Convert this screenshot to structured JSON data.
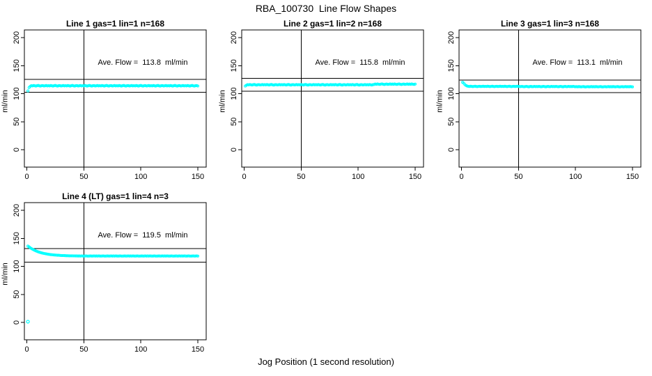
{
  "figure": {
    "title": "RBA_100730  Line Flow Shapes",
    "x_axis_label": "Jog Position (1 second resolution)"
  },
  "colors": {
    "points": "#00FFFF",
    "axes_and_lines": "#000000",
    "background": "#FFFFFF"
  },
  "chart_data": [
    {
      "type": "scatter",
      "title": "Line 1 gas=1 lin=1 n=168",
      "annotation": "Ave. Flow =  113.8  ml/min",
      "ave_flow": 113.8,
      "ylabel": "ml/min",
      "xlim": [
        0,
        150
      ],
      "ylim": [
        0,
        200
      ],
      "x_ticks": [
        0,
        50,
        100,
        150
      ],
      "y_ticks": [
        0,
        50,
        100,
        150,
        200
      ],
      "vline_x": 50,
      "hlines": [
        125.2,
        102.4
      ],
      "x_start": 1,
      "x_step": 1,
      "y_values": [
        104.9,
        110.8,
        113.0,
        114.3,
        113.8,
        114.5,
        114.0,
        113.6,
        114.2,
        114.6,
        113.9,
        113.5,
        114.1,
        114.4,
        113.7,
        114.0,
        114.5,
        113.8,
        114.3,
        113.8,
        114.5,
        114.0,
        113.6,
        114.2,
        114.6,
        113.9,
        113.5,
        114.1,
        114.4,
        113.7,
        114.0,
        114.5,
        113.8,
        114.3,
        113.8,
        114.5,
        114.0,
        113.6,
        114.2,
        114.6,
        113.9,
        113.5,
        114.1,
        114.4,
        113.7,
        114.0,
        114.5,
        113.8,
        114.3,
        113.8,
        114.5,
        114.0,
        113.6,
        114.2,
        114.6,
        113.9,
        113.5,
        114.1,
        114.4,
        113.7,
        114.0,
        114.5,
        113.8,
        114.3,
        113.8,
        114.5,
        114.0,
        113.6,
        114.2,
        114.6,
        113.9,
        113.5,
        114.1,
        114.4,
        113.7,
        114.0,
        114.5,
        113.8,
        114.3,
        113.8,
        114.5,
        114.0,
        113.6,
        114.2,
        114.6,
        113.9,
        113.5,
        114.1,
        114.4,
        113.7,
        114.0,
        114.5,
        113.8,
        114.3,
        113.8,
        114.5,
        114.0,
        113.6,
        114.2,
        114.6,
        113.9,
        113.5,
        114.1,
        114.4,
        113.7,
        114.0,
        114.5,
        113.8,
        114.3,
        113.8,
        114.5,
        114.0,
        113.6,
        114.2,
        114.6,
        113.9,
        113.5,
        114.1,
        114.4,
        113.7,
        114.0,
        114.5,
        113.8,
        114.3,
        113.8,
        114.5,
        114.0,
        113.6,
        114.2,
        114.6,
        113.9,
        113.5,
        114.1,
        114.4,
        113.7,
        114.0,
        114.5,
        113.8,
        114.3,
        113.8,
        114.5,
        114.0,
        113.6,
        114.2,
        114.6,
        113.9,
        113.5,
        114.1,
        114.4,
        113.7
      ],
      "extra_points": []
    },
    {
      "type": "scatter",
      "title": "Line 2 gas=1 lin=2 n=168",
      "annotation": "Ave. Flow =  115.8  ml/min",
      "ave_flow": 115.8,
      "ylabel": "ml/min",
      "xlim": [
        0,
        150
      ],
      "ylim": [
        0,
        200
      ],
      "x_ticks": [
        0,
        50,
        100,
        150
      ],
      "y_ticks": [
        0,
        50,
        100,
        150,
        200
      ],
      "vline_x": 50,
      "hlines": [
        127.4,
        104.2
      ],
      "x_start": 1,
      "x_step": 1,
      "y_values": [
        113.6,
        115.0,
        116.1,
        115.6,
        116.3,
        115.8,
        115.4,
        116.0,
        116.4,
        115.7,
        115.3,
        115.9,
        116.2,
        115.5,
        115.8,
        116.3,
        115.6,
        116.1,
        115.6,
        116.3,
        115.8,
        115.4,
        116.0,
        116.4,
        115.7,
        115.3,
        115.9,
        116.2,
        115.5,
        115.8,
        116.3,
        115.6,
        116.1,
        115.6,
        116.3,
        115.8,
        115.4,
        116.0,
        116.4,
        115.7,
        115.3,
        115.9,
        116.2,
        115.5,
        115.8,
        116.3,
        115.6,
        116.1,
        115.6,
        116.3,
        115.8,
        115.4,
        116.0,
        116.4,
        115.7,
        115.3,
        115.9,
        116.2,
        115.5,
        115.8,
        116.3,
        115.6,
        116.1,
        115.6,
        116.3,
        115.8,
        115.4,
        116.0,
        116.4,
        115.7,
        115.3,
        115.9,
        116.2,
        115.5,
        115.8,
        116.3,
        115.6,
        116.1,
        115.6,
        116.3,
        115.8,
        115.4,
        116.0,
        116.4,
        115.7,
        115.3,
        115.9,
        116.2,
        115.5,
        115.8,
        116.3,
        115.6,
        116.1,
        115.6,
        116.3,
        115.8,
        115.4,
        116.0,
        116.4,
        115.7,
        115.3,
        115.9,
        116.2,
        115.5,
        115.8,
        116.3,
        115.6,
        116.1,
        115.6,
        116.3,
        115.8,
        115.4,
        116.0,
        116.4,
        117.1,
        116.6,
        117.3,
        116.8,
        116.4,
        117.0,
        117.4,
        116.7,
        116.3,
        116.9,
        117.2,
        116.5,
        116.8,
        117.3,
        116.6,
        117.1,
        116.6,
        117.3,
        116.8,
        116.4,
        117.0,
        117.4,
        116.7,
        116.3,
        116.9,
        117.2,
        116.5,
        116.8,
        117.3,
        116.6,
        117.1,
        116.6,
        117.3,
        116.8,
        116.4,
        117.0
      ],
      "extra_points": []
    },
    {
      "type": "scatter",
      "title": "Line 3 gas=1 lin=3 n=168",
      "annotation": "Ave. Flow =  113.1  ml/min",
      "ave_flow": 113.1,
      "ylabel": "ml/min",
      "xlim": [
        0,
        150
      ],
      "ylim": [
        0,
        200
      ],
      "x_ticks": [
        0,
        50,
        100,
        150
      ],
      "y_ticks": [
        0,
        50,
        100,
        150,
        200
      ],
      "vline_x": 50,
      "hlines": [
        124.4,
        101.8
      ],
      "x_start": 1,
      "x_step": 1,
      "y_values": [
        120.3,
        118.6,
        116.2,
        114.5,
        113.6,
        113.1,
        112.8,
        113.3,
        112.9,
        112.6,
        113.0,
        113.3,
        112.8,
        112.5,
        113.0,
        113.2,
        112.7,
        112.9,
        113.3,
        112.8,
        113.1,
        112.8,
        113.3,
        112.9,
        112.6,
        113.0,
        113.3,
        112.8,
        112.5,
        113.0,
        113.2,
        112.7,
        112.9,
        113.3,
        112.8,
        113.1,
        112.8,
        113.3,
        112.9,
        112.6,
        113.0,
        113.3,
        112.8,
        112.5,
        113.0,
        113.2,
        112.7,
        112.9,
        113.3,
        112.8,
        112.8,
        112.5,
        113.0,
        112.6,
        112.3,
        112.7,
        113.0,
        112.5,
        112.2,
        112.7,
        112.9,
        112.4,
        112.6,
        113.0,
        112.5,
        112.8,
        112.5,
        113.0,
        112.6,
        112.3,
        112.7,
        113.0,
        112.5,
        112.2,
        112.7,
        112.9,
        112.4,
        112.6,
        113.0,
        112.5,
        112.8,
        112.5,
        113.0,
        112.6,
        112.3,
        112.7,
        113.0,
        112.5,
        112.2,
        112.7,
        112.9,
        112.4,
        112.6,
        113.0,
        112.5,
        112.8,
        112.5,
        113.0,
        112.6,
        112.3,
        112.5,
        112.2,
        112.7,
        112.3,
        112.0,
        112.4,
        112.7,
        112.2,
        111.9,
        112.4,
        112.6,
        112.1,
        112.3,
        112.7,
        112.2,
        112.5,
        112.2,
        112.7,
        112.3,
        112.0,
        112.4,
        112.7,
        112.2,
        111.9,
        112.4,
        112.6,
        112.1,
        112.3,
        112.7,
        112.2,
        112.5,
        112.2,
        112.7,
        112.3,
        112.0,
        112.4,
        112.7,
        112.2,
        111.9,
        112.4,
        112.6,
        112.1,
        112.3,
        112.7,
        112.2,
        112.5,
        112.2,
        112.7,
        112.3,
        112.0
      ],
      "extra_points": []
    },
    {
      "type": "scatter",
      "title": "Line 4 (LT) gas=1 lin=4 n=3",
      "annotation": "Ave. Flow =  119.5  ml/min",
      "ave_flow": 119.5,
      "ylabel": "ml/min",
      "xlim": [
        0,
        150
      ],
      "ylim": [
        0,
        200
      ],
      "x_ticks": [
        0,
        50,
        100,
        150
      ],
      "y_ticks": [
        0,
        50,
        100,
        150,
        200
      ],
      "vline_x": 50,
      "hlines": [
        131.5,
        107.6
      ],
      "x_start": 1,
      "x_step": 1,
      "y_values": [
        136.2,
        134.6,
        133.1,
        131.8,
        130.5,
        129.4,
        128.4,
        127.5,
        126.7,
        125.9,
        125.2,
        124.6,
        124.0,
        123.5,
        123.0,
        122.6,
        122.2,
        121.9,
        121.5,
        121.2,
        120.9,
        120.7,
        120.5,
        120.3,
        120.1,
        120.0,
        119.8,
        119.7,
        119.5,
        119.4,
        119.3,
        119.2,
        119.1,
        119.0,
        118.9,
        118.9,
        118.8,
        118.8,
        118.7,
        118.7,
        118.6,
        118.6,
        118.5,
        118.5,
        118.4,
        118.5,
        118.3,
        118.6,
        118.4,
        118.2,
        118.4,
        118.6,
        118.3,
        118.2,
        118.4,
        118.5,
        118.3,
        118.4,
        118.6,
        118.3,
        118.5,
        118.3,
        118.6,
        118.4,
        118.2,
        118.4,
        118.6,
        118.3,
        118.2,
        118.4,
        118.5,
        118.3,
        118.4,
        118.6,
        118.3,
        118.5,
        118.3,
        118.6,
        118.4,
        118.2,
        118.4,
        118.6,
        118.3,
        118.2,
        118.4,
        118.5,
        118.3,
        118.4,
        118.6,
        118.3,
        118.5,
        118.3,
        118.6,
        118.4,
        118.2,
        118.4,
        118.6,
        118.3,
        118.2,
        118.4,
        118.5,
        118.3,
        118.4,
        118.6,
        118.3,
        118.5,
        118.3,
        118.6,
        118.4,
        118.2,
        118.4,
        118.6,
        118.3,
        118.2,
        118.4,
        118.5,
        118.3,
        118.4,
        118.6,
        118.3,
        118.5,
        118.3,
        118.6,
        118.4,
        118.2,
        118.4,
        118.6,
        118.3,
        118.2,
        118.4,
        118.5,
        118.3,
        118.4,
        118.6,
        118.3,
        118.5,
        118.3,
        118.6,
        118.4,
        118.2,
        118.4,
        118.6,
        118.3,
        118.2,
        118.4,
        118.5,
        118.3,
        118.4,
        118.6,
        118.3
      ],
      "extra_points": [
        [
          1,
          1.2
        ]
      ]
    }
  ]
}
